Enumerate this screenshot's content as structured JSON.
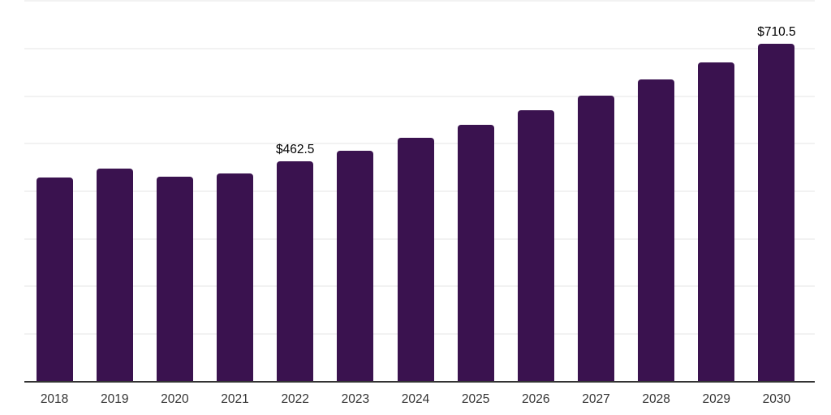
{
  "chart_data": {
    "type": "bar",
    "title": "",
    "xlabel": "",
    "ylabel": "",
    "categories": [
      "2018",
      "2019",
      "2020",
      "2021",
      "2022",
      "2023",
      "2024",
      "2025",
      "2026",
      "2027",
      "2028",
      "2029",
      "2030"
    ],
    "values": [
      429,
      448,
      430.5,
      438,
      462.5,
      485.5,
      512,
      539.5,
      570.5,
      601.5,
      634.5,
      670.5,
      710.5
    ],
    "value_labels": {
      "2022": "$462.5",
      "2030": "$710.5"
    },
    "ylim": [
      0,
      800
    ],
    "grid_step": 100,
    "grid": true,
    "legend": "none",
    "colors": {
      "bar": "#3a124f",
      "gridline": "#f2f2f2",
      "axis": "#333333",
      "tick_label": "#333333",
      "value_label": "#000000"
    }
  }
}
